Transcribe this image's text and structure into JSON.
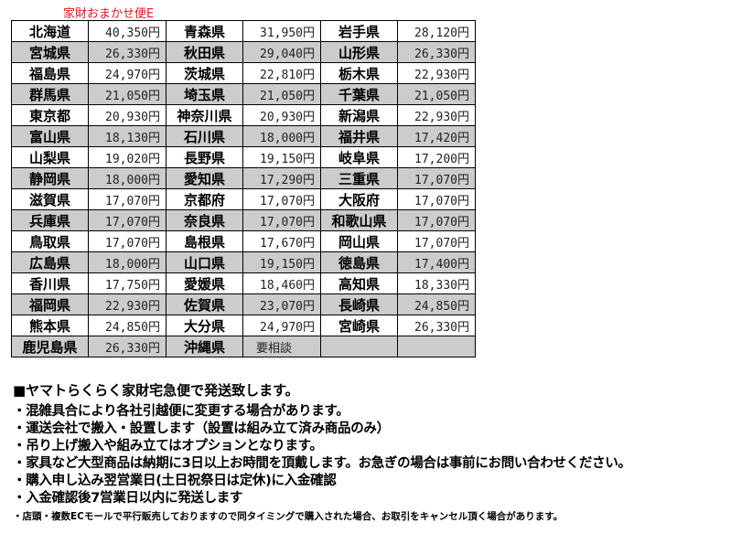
{
  "caption": "家財おまかせ便E",
  "rows": [
    [
      [
        "北海道",
        "40,350円"
      ],
      [
        "青森県",
        "31,950円"
      ],
      [
        "岩手県",
        "28,120円"
      ]
    ],
    [
      [
        "宮城県",
        "26,330円"
      ],
      [
        "秋田県",
        "29,040円"
      ],
      [
        "山形県",
        "26,330円"
      ]
    ],
    [
      [
        "福島県",
        "24,970円"
      ],
      [
        "茨城県",
        "22,810円"
      ],
      [
        "栃木県",
        "22,930円"
      ]
    ],
    [
      [
        "群馬県",
        "21,050円"
      ],
      [
        "埼玉県",
        "21,050円"
      ],
      [
        "千葉県",
        "21,050円"
      ]
    ],
    [
      [
        "東京都",
        "20,930円"
      ],
      [
        "神奈川県",
        "20,930円"
      ],
      [
        "新潟県",
        "22,930円"
      ]
    ],
    [
      [
        "富山県",
        "18,130円"
      ],
      [
        "石川県",
        "18,000円"
      ],
      [
        "福井県",
        "17,420円"
      ]
    ],
    [
      [
        "山梨県",
        "19,020円"
      ],
      [
        "長野県",
        "19,150円"
      ],
      [
        "岐阜県",
        "17,200円"
      ]
    ],
    [
      [
        "静岡県",
        "18,000円"
      ],
      [
        "愛知県",
        "17,290円"
      ],
      [
        "三重県",
        "17,070円"
      ]
    ],
    [
      [
        "滋賀県",
        "17,070円"
      ],
      [
        "京都府",
        "17,070円"
      ],
      [
        "大阪府",
        "17,070円"
      ]
    ],
    [
      [
        "兵庫県",
        "17,070円"
      ],
      [
        "奈良県",
        "17,070円"
      ],
      [
        "和歌山県",
        "17,070円"
      ]
    ],
    [
      [
        "鳥取県",
        "17,070円"
      ],
      [
        "島根県",
        "17,670円"
      ],
      [
        "岡山県",
        "17,070円"
      ]
    ],
    [
      [
        "広島県",
        "18,000円"
      ],
      [
        "山口県",
        "19,150円"
      ],
      [
        "徳島県",
        "17,400円"
      ]
    ],
    [
      [
        "香川県",
        "17,750円"
      ],
      [
        "愛媛県",
        "18,460円"
      ],
      [
        "高知県",
        "18,330円"
      ]
    ],
    [
      [
        "福岡県",
        "22,930円"
      ],
      [
        "佐賀県",
        "23,070円"
      ],
      [
        "長崎県",
        "24,850円"
      ]
    ],
    [
      [
        "熊本県",
        "24,850円"
      ],
      [
        "大分県",
        "24,970円"
      ],
      [
        "宮崎県",
        "26,330円"
      ]
    ],
    [
      [
        "鹿児島県",
        "26,330円"
      ],
      [
        "沖縄県",
        "要相談"
      ],
      [
        "",
        ""
      ]
    ]
  ],
  "heading": "■ヤマトらくらく家財宅急便で発送致します。",
  "bullets": [
    "・混雑具合により各社引越便に変更する場合があります。",
    "・運送会社で搬入・設置します（設置は組み立て済み商品のみ）",
    "・吊り上げ搬入や組み立てはオプションとなります。",
    "・家具など大型商品は納期に3日以上お時間を頂戴します。お急ぎの場合は事前にお問い合わせください。",
    "・購入申し込み翌営業日(土日祝祭日は定休)に入金確認",
    "・入金確認後7営業日以内に発送します"
  ],
  "footnote": "・店頭・複数ECモールで平行販売しておりますので同タイミングで購入された場合、お取引をキャンセル頂く場合があります。",
  "colors": {
    "caption": "#e8141e",
    "alt_row": "#cccccc"
  }
}
